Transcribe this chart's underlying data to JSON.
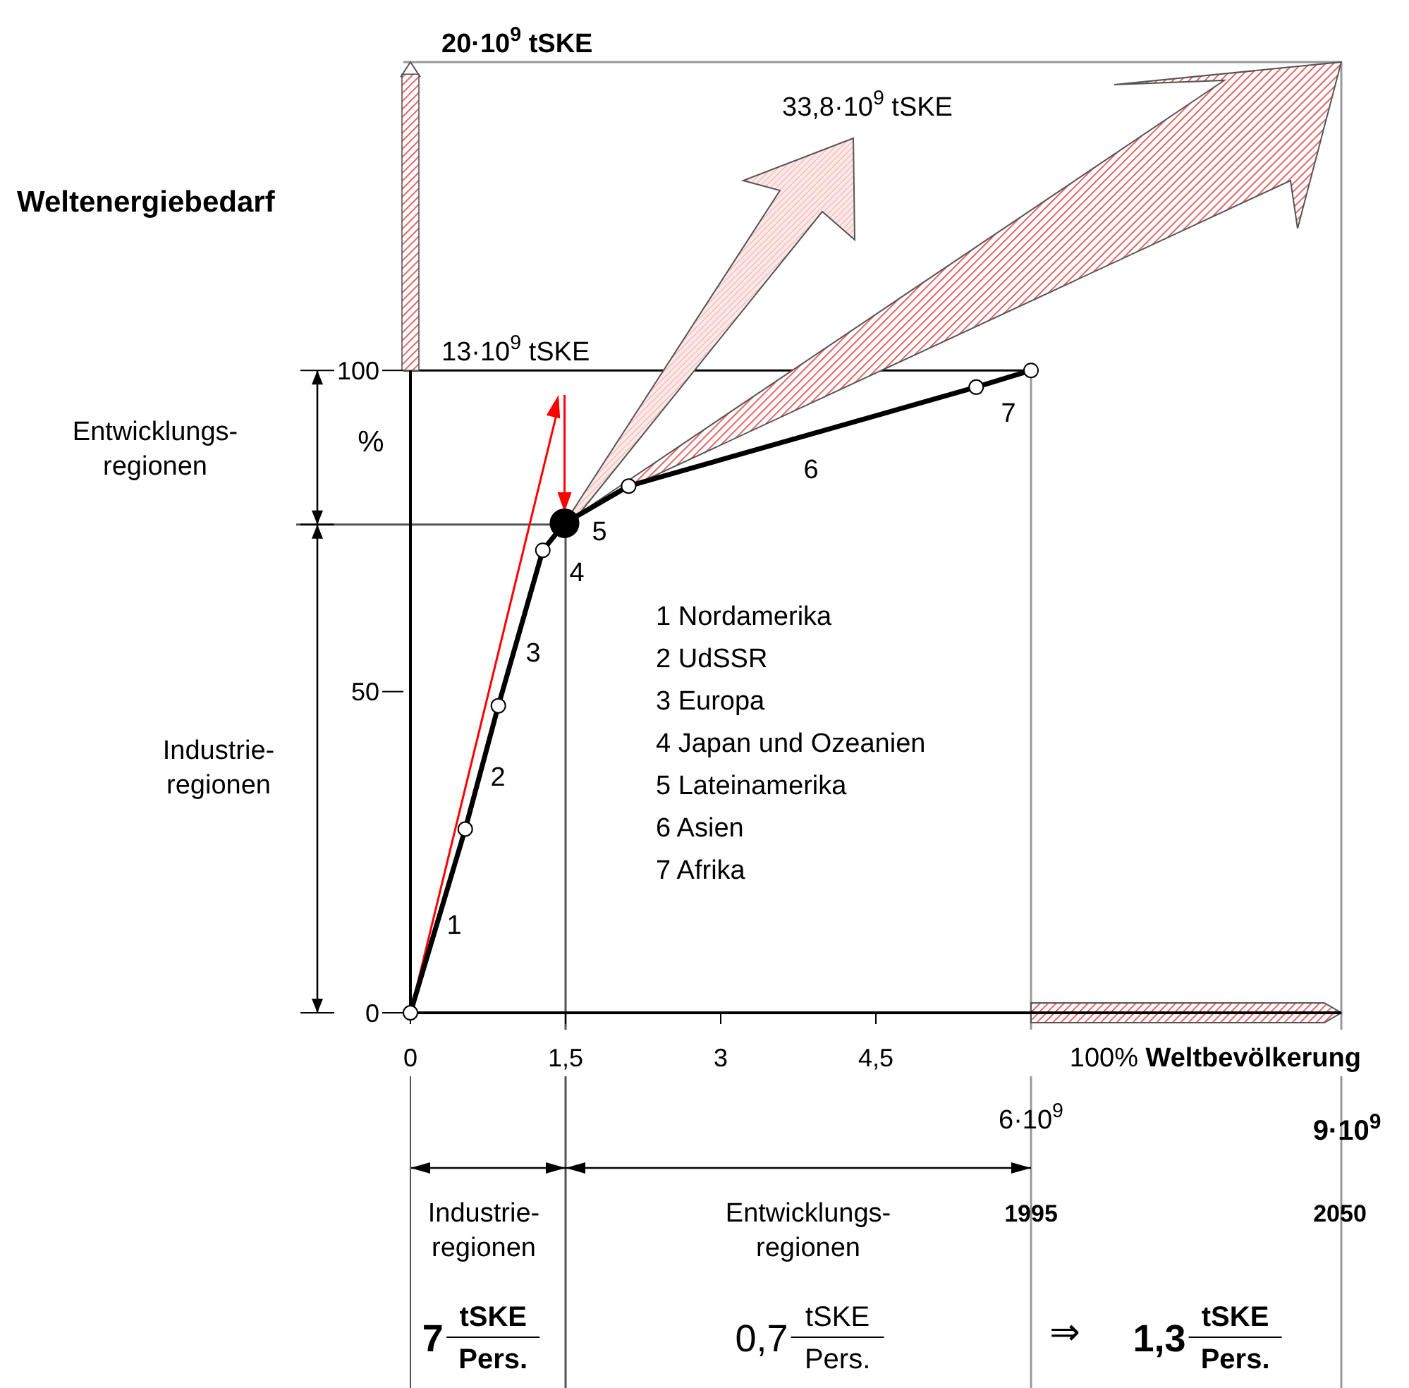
{
  "chart_data": {
    "type": "line",
    "ylabel": "Weltenergiebedarf",
    "xlabel": "100% Weltbevölkerung",
    "xlim": [
      0,
      9
    ],
    "ylim": [
      0,
      148
    ],
    "xticks": [
      0,
      {
        "value": 1.5,
        "label": "1,5"
      },
      3,
      {
        "value": 4.5,
        "label": "4,5"
      }
    ],
    "yticks": [
      0,
      50,
      100
    ],
    "series": [
      {
        "type": "line",
        "color": "#000000",
        "marker": "circle",
        "x": [
          0,
          0.53,
          0.85,
          1.28,
          1.49,
          2.11,
          5.47,
          6
        ],
        "values": [
          0,
          28.6,
          47.8,
          72,
          76.2,
          82,
          97.4,
          100
        ]
      },
      {
        "type": "scatter",
        "color": "#000000",
        "marker": "circle",
        "x": [
          1.49
        ],
        "values": [
          76.2
        ]
      }
    ],
    "ref_lines": [
      {
        "axis": "y",
        "value": 148,
        "label": "20·10$^{9}$ tSKE",
        "color": "#999999"
      },
      {
        "axis": "y",
        "value": 100,
        "label": "13·10$^{9}$ tSKE",
        "color": "#000000"
      },
      {
        "axis": "y",
        "value": 76,
        "color": "#555555"
      },
      {
        "axis": "x",
        "value": 1.5,
        "color": "#555555"
      },
      {
        "axis": "x",
        "value": 6,
        "color": "#999999"
      },
      {
        "axis": "x",
        "value": 9,
        "color": "#999999"
      }
    ],
    "annotations": [
      "1",
      "2",
      "3",
      "4",
      "5",
      "6",
      "7",
      "1  Nordamerika",
      "2  UdSSR",
      "3  Europa",
      "4  Japan und Ozeanien",
      "5  Lateinamerika",
      "6  Asien",
      "7 Afrika",
      "33,8·10$^{9}$ tSKE",
      "%",
      "Entwicklungs-\nregionen",
      "Industrie-\nregionen",
      "6·10$^{9}$",
      "9·10$^{9}$",
      "Industrie-\nregionen",
      "Entwicklungs-\nregionen",
      "1995",
      "2050",
      "7 tSKE Pers.",
      "0,7 tSKE Pers.",
      "⇒",
      "1,3 tSKE Pers."
    ]
  }
}
